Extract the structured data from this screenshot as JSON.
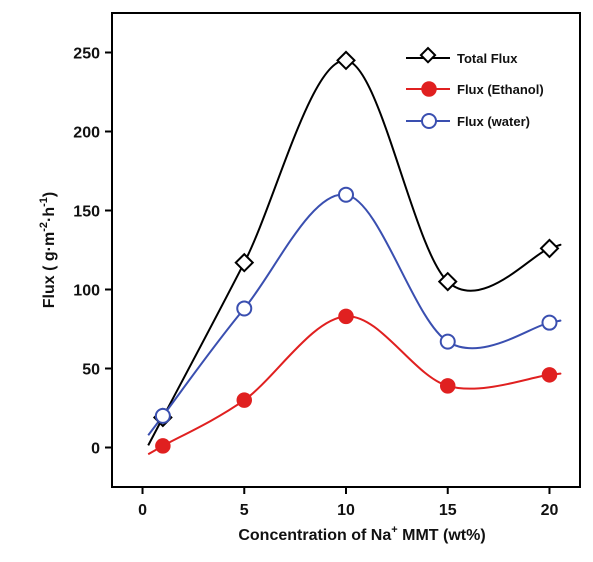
{
  "chart_data": {
    "type": "line",
    "xlabel": {
      "pre": "Concentration  of Na",
      "sup": "+",
      "post": " MMT (wt%)"
    },
    "ylabel": {
      "pre": "Flux ( g·m",
      "sup1": "-2",
      "mid": "·h",
      "sup2": "-1",
      "post": ")"
    },
    "xlim": [
      -1.5,
      21.5
    ],
    "ylim": [
      -25,
      275
    ],
    "xticks": [
      "0",
      "5",
      "10",
      "15",
      "20"
    ],
    "xtick_values": [
      0,
      5,
      10,
      15,
      20
    ],
    "yticks": [
      "0",
      "50",
      "100",
      "150",
      "200",
      "250"
    ],
    "ytick_values": [
      0,
      50,
      100,
      150,
      200,
      250
    ],
    "legend_position": "top-right",
    "series": [
      {
        "name": "Total Flux",
        "color": "#000000",
        "marker": "diamond-open",
        "x": [
          1,
          5,
          10,
          15,
          20
        ],
        "y": [
          19,
          117,
          245,
          105,
          126
        ]
      },
      {
        "name": "Flux (Ethanol)",
        "color": "#e02020",
        "marker": "circle-filled",
        "x": [
          1,
          5,
          10,
          15,
          20
        ],
        "y": [
          1,
          30,
          83,
          39,
          46
        ]
      },
      {
        "name": "Flux (water)",
        "color": "#3a4fb0",
        "marker": "circle-open",
        "x": [
          1,
          5,
          10,
          15,
          20
        ],
        "y": [
          20,
          88,
          160,
          67,
          79
        ]
      }
    ]
  }
}
